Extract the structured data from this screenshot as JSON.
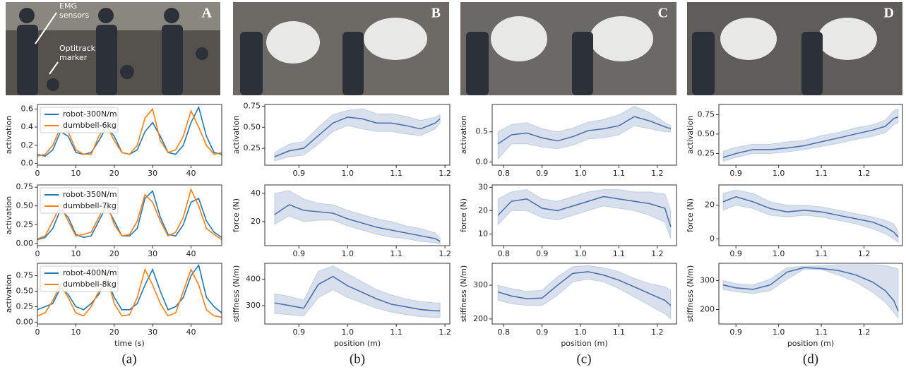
{
  "panels": [
    {
      "label": "A",
      "caption": "(a)",
      "annotations": [
        "EMG",
        "sensors",
        "Optitrack",
        "marker"
      ]
    },
    {
      "label": "B",
      "caption": "(b)"
    },
    {
      "label": "C",
      "caption": "(c)"
    },
    {
      "label": "D",
      "caption": "(d)"
    }
  ],
  "chart_data": [
    {
      "type": "line",
      "ylabel": "activation",
      "x": [
        0,
        2,
        4,
        6,
        8,
        10,
        12,
        14,
        16,
        18,
        20,
        22,
        24,
        26,
        28,
        30,
        32,
        34,
        36,
        38,
        40,
        42,
        44,
        46,
        48
      ],
      "xlim": [
        0,
        48
      ],
      "xticks": [
        0,
        10,
        20,
        30,
        40
      ],
      "ylim": [
        -0.02,
        0.65
      ],
      "yticks": [
        {
          "value": 0,
          "label": "0.0"
        },
        0.2,
        0.4,
        0.6
      ],
      "legend": "upper left",
      "series": [
        {
          "name": "robot-300N/m",
          "color": "#1f77b4",
          "values": [
            0.1,
            0.08,
            0.15,
            0.35,
            0.3,
            0.12,
            0.1,
            0.12,
            0.25,
            0.4,
            0.3,
            0.12,
            0.1,
            0.15,
            0.35,
            0.45,
            0.3,
            0.12,
            0.1,
            0.2,
            0.45,
            0.62,
            0.3,
            0.12,
            0.1
          ]
        },
        {
          "name": "dumbbell-6kg",
          "color": "#ff7f0e",
          "values": [
            0.08,
            0.1,
            0.2,
            0.4,
            0.35,
            0.15,
            0.1,
            0.1,
            0.3,
            0.42,
            0.25,
            0.12,
            0.1,
            0.2,
            0.5,
            0.6,
            0.25,
            0.12,
            0.15,
            0.3,
            0.58,
            0.4,
            0.2,
            0.1,
            0.12
          ]
        }
      ]
    },
    {
      "type": "line",
      "ylabel": "activation",
      "x": [
        0,
        2,
        4,
        6,
        8,
        10,
        12,
        14,
        16,
        18,
        20,
        22,
        24,
        26,
        28,
        30,
        32,
        34,
        36,
        38,
        40,
        42,
        44,
        46,
        48
      ],
      "xlim": [
        0,
        48
      ],
      "xticks": [
        0,
        10,
        20,
        30,
        40
      ],
      "ylim": [
        -0.03,
        0.78
      ],
      "yticks": [
        {
          "value": 0,
          "label": "0.00"
        },
        0.25,
        {
          "value": 0.5,
          "label": "0.50"
        },
        0.75
      ],
      "legend": "upper left",
      "series": [
        {
          "name": "robot-350N/m",
          "color": "#1f77b4",
          "values": [
            0.05,
            0.08,
            0.2,
            0.45,
            0.35,
            0.12,
            0.08,
            0.1,
            0.3,
            0.5,
            0.3,
            0.1,
            0.1,
            0.2,
            0.6,
            0.7,
            0.35,
            0.12,
            0.1,
            0.25,
            0.55,
            0.6,
            0.3,
            0.15,
            0.08
          ]
        },
        {
          "name": "dumbbell-7kg",
          "color": "#ff7f0e",
          "values": [
            0.06,
            0.1,
            0.3,
            0.5,
            0.3,
            0.1,
            0.12,
            0.15,
            0.35,
            0.55,
            0.25,
            0.1,
            0.12,
            0.3,
            0.65,
            0.55,
            0.3,
            0.1,
            0.15,
            0.35,
            0.72,
            0.5,
            0.2,
            0.12,
            0.05
          ]
        }
      ]
    },
    {
      "type": "line",
      "ylabel": "activation",
      "xlabel": "time (s)",
      "x": [
        0,
        2,
        4,
        6,
        8,
        10,
        12,
        14,
        16,
        18,
        20,
        22,
        24,
        26,
        28,
        30,
        32,
        34,
        36,
        38,
        40,
        42,
        44,
        46,
        48
      ],
      "xlim": [
        0,
        48
      ],
      "xticks": [
        0,
        10,
        20,
        30,
        40
      ],
      "ylim": [
        -0.03,
        0.95
      ],
      "yticks": [
        {
          "value": 0,
          "label": "0.00"
        },
        0.25,
        {
          "value": 0.5,
          "label": "0.50"
        },
        0.75
      ],
      "legend": "upper left",
      "series": [
        {
          "name": "robot-400N/m",
          "color": "#1f77b4",
          "values": [
            0.2,
            0.25,
            0.3,
            0.55,
            0.45,
            0.25,
            0.2,
            0.3,
            0.45,
            0.7,
            0.4,
            0.2,
            0.2,
            0.3,
            0.6,
            0.85,
            0.5,
            0.2,
            0.25,
            0.4,
            0.75,
            0.92,
            0.4,
            0.25,
            0.15
          ]
        },
        {
          "name": "dumbbell-8kg",
          "color": "#ff7f0e",
          "values": [
            0.1,
            0.15,
            0.35,
            0.6,
            0.4,
            0.15,
            0.1,
            0.25,
            0.5,
            0.75,
            0.3,
            0.1,
            0.12,
            0.4,
            0.85,
            0.6,
            0.3,
            0.1,
            0.15,
            0.5,
            0.85,
            0.6,
            0.2,
            0.1,
            0.08
          ]
        }
      ]
    },
    {
      "type": "band",
      "ylabel": "activation",
      "x": [
        0.85,
        0.88,
        0.91,
        0.94,
        0.97,
        1.0,
        1.03,
        1.06,
        1.09,
        1.12,
        1.15,
        1.18,
        1.19
      ],
      "xlim": [
        0.83,
        1.21
      ],
      "xticks": [
        0.9,
        {
          "value": 1,
          "label": "1.0"
        },
        1.1,
        1.2
      ],
      "ylim": [
        0.05,
        0.77
      ],
      "yticks": [
        0.25,
        {
          "value": 0.5,
          "label": "0.50"
        },
        0.75
      ],
      "series": [
        {
          "color": "#4c72b0",
          "values": [
            0.15,
            0.22,
            0.25,
            0.4,
            0.55,
            0.62,
            0.6,
            0.55,
            0.55,
            0.52,
            0.48,
            0.55,
            0.6
          ],
          "lower": [
            0.1,
            0.15,
            0.17,
            0.3,
            0.45,
            0.52,
            0.48,
            0.45,
            0.45,
            0.42,
            0.4,
            0.48,
            0.55
          ],
          "upper": [
            0.2,
            0.3,
            0.33,
            0.5,
            0.65,
            0.7,
            0.72,
            0.66,
            0.66,
            0.63,
            0.58,
            0.62,
            0.65
          ]
        }
      ]
    },
    {
      "type": "band",
      "ylabel": "force (N)",
      "x": [
        0.85,
        0.88,
        0.91,
        0.94,
        0.97,
        1.0,
        1.03,
        1.06,
        1.09,
        1.12,
        1.15,
        1.18,
        1.19
      ],
      "xlim": [
        0.83,
        1.21
      ],
      "xticks": [
        0.9,
        {
          "value": 1,
          "label": "1.0"
        },
        1.1,
        1.2
      ],
      "ylim": [
        3,
        46
      ],
      "yticks": [
        20,
        40
      ],
      "series": [
        {
          "color": "#4c72b0",
          "values": [
            25,
            32,
            28,
            27,
            26,
            22,
            19,
            16,
            14,
            12,
            10,
            8,
            6
          ],
          "lower": [
            18,
            24,
            20,
            21,
            21,
            17,
            14,
            11,
            9,
            8,
            6,
            5,
            4
          ],
          "upper": [
            40,
            42,
            36,
            33,
            32,
            28,
            25,
            22,
            20,
            17,
            15,
            12,
            8
          ]
        }
      ]
    },
    {
      "type": "band",
      "ylabel": "stiffness (N/m)",
      "xlabel": "position (m)",
      "x": [
        0.85,
        0.88,
        0.91,
        0.94,
        0.97,
        1.0,
        1.03,
        1.06,
        1.09,
        1.12,
        1.15,
        1.18,
        1.19
      ],
      "xlim": [
        0.83,
        1.21
      ],
      "xticks": [
        0.9,
        {
          "value": 1,
          "label": "1.0"
        },
        1.1,
        1.2
      ],
      "ylim": [
        230,
        460
      ],
      "yticks": [
        300,
        400
      ],
      "series": [
        {
          "color": "#4c72b0",
          "values": [
            310,
            300,
            290,
            380,
            410,
            375,
            350,
            325,
            305,
            295,
            285,
            280,
            280
          ],
          "lower": [
            270,
            265,
            260,
            330,
            360,
            330,
            310,
            290,
            275,
            265,
            258,
            255,
            255
          ],
          "upper": [
            345,
            335,
            320,
            430,
            450,
            420,
            390,
            360,
            340,
            325,
            315,
            310,
            310
          ]
        }
      ]
    },
    {
      "type": "band",
      "ylabel": "activation",
      "x": [
        0.785,
        0.82,
        0.86,
        0.9,
        0.94,
        0.98,
        1.02,
        1.06,
        1.1,
        1.14,
        1.18,
        1.22,
        1.235
      ],
      "xlim": [
        0.77,
        1.25
      ],
      "xticks": [
        0.8,
        0.9,
        {
          "value": 1,
          "label": "1.0"
        },
        1.1,
        1.2
      ],
      "ylim": [
        -0.05,
        0.95
      ],
      "yticks": [
        {
          "value": 0,
          "label": "0.0"
        },
        0.5
      ],
      "series": [
        {
          "color": "#4c72b0",
          "values": [
            0.3,
            0.45,
            0.48,
            0.4,
            0.35,
            0.42,
            0.52,
            0.55,
            0.6,
            0.75,
            0.68,
            0.58,
            0.55
          ],
          "lower": [
            0.05,
            0.3,
            0.3,
            0.25,
            0.22,
            0.28,
            0.38,
            0.4,
            0.45,
            0.6,
            0.55,
            0.5,
            0.5
          ],
          "upper": [
            0.5,
            0.62,
            0.65,
            0.55,
            0.5,
            0.56,
            0.66,
            0.7,
            0.78,
            0.92,
            0.82,
            0.65,
            0.6
          ]
        }
      ]
    },
    {
      "type": "band",
      "ylabel": "force (N)",
      "x": [
        0.785,
        0.82,
        0.86,
        0.9,
        0.94,
        0.98,
        1.02,
        1.06,
        1.1,
        1.14,
        1.18,
        1.22,
        1.235
      ],
      "xlim": [
        0.77,
        1.25
      ],
      "xticks": [
        0.8,
        0.9,
        {
          "value": 1,
          "label": "1.0"
        },
        1.1,
        1.2
      ],
      "ylim": [
        5,
        31
      ],
      "yticks": [
        10,
        20,
        30
      ],
      "series": [
        {
          "color": "#4c72b0",
          "values": [
            18,
            24,
            25,
            21,
            20,
            22,
            24,
            26,
            25,
            24,
            23,
            21,
            13
          ],
          "lower": [
            14,
            20,
            20,
            17,
            16,
            18,
            20,
            22,
            21,
            20,
            18,
            15,
            8
          ],
          "upper": [
            25,
            28,
            29,
            25,
            24,
            26,
            28,
            29,
            29,
            28,
            28,
            27,
            20
          ]
        }
      ]
    },
    {
      "type": "band",
      "ylabel": "stiffness (N/m)",
      "xlabel": "position (m)",
      "x": [
        0.785,
        0.82,
        0.86,
        0.9,
        0.94,
        0.98,
        1.02,
        1.06,
        1.1,
        1.14,
        1.18,
        1.22,
        1.235
      ],
      "xlim": [
        0.77,
        1.25
      ],
      "xticks": [
        0.8,
        0.9,
        {
          "value": 1,
          "label": "1.0"
        },
        1.1,
        1.2
      ],
      "ylim": [
        185,
        365
      ],
      "yticks": [
        200,
        300
      ],
      "series": [
        {
          "color": "#4c72b0",
          "values": [
            280,
            268,
            260,
            262,
            300,
            335,
            340,
            330,
            315,
            295,
            275,
            255,
            240
          ],
          "lower": [
            255,
            245,
            240,
            240,
            270,
            310,
            318,
            310,
            290,
            265,
            240,
            215,
            200
          ],
          "upper": [
            300,
            290,
            282,
            285,
            325,
            355,
            358,
            352,
            340,
            320,
            305,
            295,
            285
          ]
        }
      ]
    },
    {
      "type": "band",
      "ylabel": "activation",
      "x": [
        0.87,
        0.9,
        0.94,
        0.98,
        1.02,
        1.06,
        1.1,
        1.14,
        1.18,
        1.22,
        1.25,
        1.27,
        1.28
      ],
      "xlim": [
        0.86,
        1.29
      ],
      "xticks": [
        0.9,
        {
          "value": 1,
          "label": "1.0"
        },
        1.1,
        1.2
      ],
      "ylim": [
        0.1,
        0.88
      ],
      "yticks": [
        0.25,
        {
          "value": 0.5,
          "label": "0.50"
        },
        0.75
      ],
      "series": [
        {
          "color": "#4c72b0",
          "values": [
            0.2,
            0.25,
            0.3,
            0.3,
            0.32,
            0.35,
            0.4,
            0.45,
            0.5,
            0.55,
            0.6,
            0.7,
            0.72
          ],
          "lower": [
            0.15,
            0.2,
            0.25,
            0.25,
            0.27,
            0.3,
            0.34,
            0.38,
            0.43,
            0.47,
            0.52,
            0.62,
            0.65
          ],
          "upper": [
            0.28,
            0.33,
            0.37,
            0.37,
            0.4,
            0.42,
            0.48,
            0.52,
            0.58,
            0.62,
            0.68,
            0.8,
            0.82
          ]
        }
      ]
    },
    {
      "type": "band",
      "ylabel": "force (N)",
      "x": [
        0.87,
        0.9,
        0.94,
        0.98,
        1.02,
        1.06,
        1.1,
        1.14,
        1.18,
        1.22,
        1.25,
        1.27,
        1.28
      ],
      "xlim": [
        0.86,
        1.29
      ],
      "xticks": [
        0.9,
        {
          "value": 1,
          "label": "1.0"
        },
        1.1,
        1.2
      ],
      "ylim": [
        -4,
        32
      ],
      "yticks": [
        0,
        20
      ],
      "series": [
        {
          "color": "#4c72b0",
          "values": [
            22,
            25,
            22,
            18,
            16,
            17,
            16,
            14,
            12,
            10,
            7,
            4,
            1
          ],
          "lower": [
            17,
            20,
            18,
            14,
            13,
            14,
            13,
            11,
            9,
            6,
            3,
            0,
            -2
          ],
          "upper": [
            27,
            29,
            27,
            22,
            20,
            20,
            19,
            17,
            15,
            13,
            11,
            9,
            4
          ]
        }
      ]
    },
    {
      "type": "band",
      "ylabel": "stiffness (N/m)",
      "xlabel": "position (m)",
      "x": [
        0.87,
        0.9,
        0.94,
        0.98,
        1.02,
        1.06,
        1.1,
        1.14,
        1.18,
        1.22,
        1.25,
        1.27,
        1.28
      ],
      "xlim": [
        0.86,
        1.29
      ],
      "xticks": [
        0.9,
        {
          "value": 1,
          "label": "1.0"
        },
        1.1,
        1.2
      ],
      "ylim": [
        150,
        360
      ],
      "yticks": [
        200,
        300
      ],
      "series": [
        {
          "color": "#4c72b0",
          "values": [
            285,
            275,
            270,
            285,
            330,
            345,
            342,
            335,
            320,
            295,
            265,
            230,
            195
          ],
          "lower": [
            270,
            262,
            255,
            265,
            305,
            340,
            338,
            320,
            295,
            260,
            225,
            190,
            170
          ],
          "upper": [
            300,
            290,
            285,
            305,
            345,
            350,
            352,
            355,
            355,
            355,
            352,
            345,
            340
          ]
        }
      ]
    }
  ]
}
